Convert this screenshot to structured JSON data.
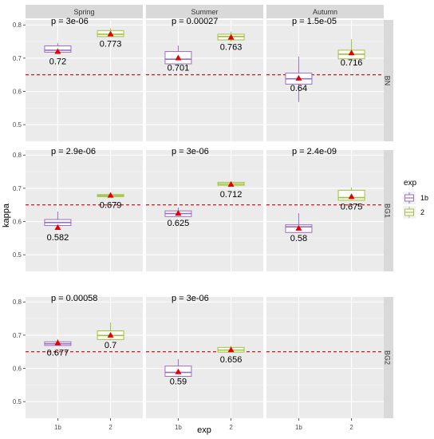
{
  "chart_data": {
    "type": "boxplot",
    "xlabel": "exp",
    "ylabel": "kappa",
    "columns": [
      "Spring",
      "Summer",
      "Autumn"
    ],
    "rows": [
      "BN",
      "BG1",
      "BG2"
    ],
    "x_categories": [
      "1b",
      "2"
    ],
    "y_ticks": [
      0.5,
      0.6,
      0.7,
      0.8
    ],
    "ylim": [
      0.45,
      0.815
    ],
    "reference_line": 0.65,
    "legend": {
      "title": "exp",
      "position": "right",
      "items": [
        "1b",
        "2"
      ]
    },
    "colors": {
      "1b": "#9b6fbf",
      "2": "#9fc33a",
      "mean": "#e60000",
      "reference": "#cc0000",
      "panel": "#ebebeb",
      "strip": "#d9d9d9"
    },
    "panels": [
      {
        "row": "BN",
        "col": "Spring",
        "p_label": "p = 3e-06",
        "boxes": [
          {
            "exp": "1b",
            "whisker_low": 0.713,
            "q1": 0.718,
            "median": 0.724,
            "q3": 0.737,
            "whisker_high": 0.745,
            "mean": 0.72,
            "label": "0.72"
          },
          {
            "exp": "2",
            "whisker_low": 0.765,
            "q1": 0.765,
            "median": 0.772,
            "q3": 0.783,
            "whisker_high": 0.79,
            "mean": 0.773,
            "label": "0.773"
          }
        ]
      },
      {
        "row": "BN",
        "col": "Summer",
        "p_label": "p = 0.00027",
        "boxes": [
          {
            "exp": "1b",
            "whisker_low": 0.683,
            "q1": 0.683,
            "median": 0.697,
            "q3": 0.72,
            "whisker_high": 0.738,
            "mean": 0.701,
            "label": "0.701"
          },
          {
            "exp": "2",
            "whisker_low": 0.75,
            "q1": 0.755,
            "median": 0.765,
            "q3": 0.772,
            "whisker_high": 0.78,
            "mean": 0.763,
            "label": "0.763"
          }
        ]
      },
      {
        "row": "BN",
        "col": "Autumn",
        "p_label": "p = 1.5e-05",
        "boxes": [
          {
            "exp": "1b",
            "whisker_low": 0.568,
            "q1": 0.622,
            "median": 0.638,
            "q3": 0.655,
            "whisker_high": 0.705,
            "mean": 0.64,
            "label": "0.64"
          },
          {
            "exp": "2",
            "whisker_low": 0.695,
            "q1": 0.698,
            "median": 0.712,
            "q3": 0.724,
            "whisker_high": 0.757,
            "mean": 0.716,
            "label": "0.716"
          }
        ]
      },
      {
        "row": "BG1",
        "col": "Spring",
        "p_label": "p = 2.9e-06",
        "boxes": [
          {
            "exp": "1b",
            "whisker_low": 0.582,
            "q1": 0.588,
            "median": 0.597,
            "q3": 0.606,
            "whisker_high": 0.63,
            "mean": 0.582,
            "label": "0.582"
          },
          {
            "exp": "2",
            "whisker_low": 0.674,
            "q1": 0.675,
            "median": 0.678,
            "q3": 0.681,
            "whisker_high": 0.684,
            "mean": 0.679,
            "label": "0.679"
          }
        ]
      },
      {
        "row": "BG1",
        "col": "Summer",
        "p_label": "p = 3e-06",
        "boxes": [
          {
            "exp": "1b",
            "whisker_low": 0.613,
            "q1": 0.615,
            "median": 0.624,
            "q3": 0.632,
            "whisker_high": 0.642,
            "mean": 0.625,
            "label": "0.625"
          },
          {
            "exp": "2",
            "whisker_low": 0.708,
            "q1": 0.709,
            "median": 0.713,
            "q3": 0.718,
            "whisker_high": 0.72,
            "mean": 0.712,
            "label": "0.712"
          }
        ]
      },
      {
        "row": "BG1",
        "col": "Autumn",
        "p_label": "p = 2.4e-09",
        "boxes": [
          {
            "exp": "1b",
            "whisker_low": 0.567,
            "q1": 0.567,
            "median": 0.584,
            "q3": 0.59,
            "whisker_high": 0.625,
            "mean": 0.58,
            "label": "0.58"
          },
          {
            "exp": "2",
            "whisker_low": 0.662,
            "q1": 0.664,
            "median": 0.672,
            "q3": 0.694,
            "whisker_high": 0.703,
            "mean": 0.675,
            "label": "0.675"
          }
        ]
      },
      {
        "row": "BG2",
        "col": "Spring",
        "p_label": "p = 0.00058",
        "boxes": [
          {
            "exp": "1b",
            "whisker_low": 0.668,
            "q1": 0.669,
            "median": 0.674,
            "q3": 0.68,
            "whisker_high": 0.688,
            "mean": 0.677,
            "label": "0.677"
          },
          {
            "exp": "2",
            "whisker_low": 0.684,
            "q1": 0.687,
            "median": 0.699,
            "q3": 0.713,
            "whisker_high": 0.738,
            "mean": 0.7,
            "label": "0.7"
          }
        ]
      },
      {
        "row": "BG2",
        "col": "Summer",
        "p_label": "p = 3e-06",
        "boxes": [
          {
            "exp": "1b",
            "whisker_low": 0.573,
            "q1": 0.576,
            "median": 0.588,
            "q3": 0.607,
            "whisker_high": 0.628,
            "mean": 0.59,
            "label": "0.59"
          },
          {
            "exp": "2",
            "whisker_low": 0.648,
            "q1": 0.649,
            "median": 0.655,
            "q3": 0.663,
            "whisker_high": 0.668,
            "mean": 0.656,
            "label": "0.656"
          }
        ]
      },
      {
        "row": "BG2",
        "col": "Autumn",
        "p_label": "",
        "boxes": []
      }
    ]
  }
}
